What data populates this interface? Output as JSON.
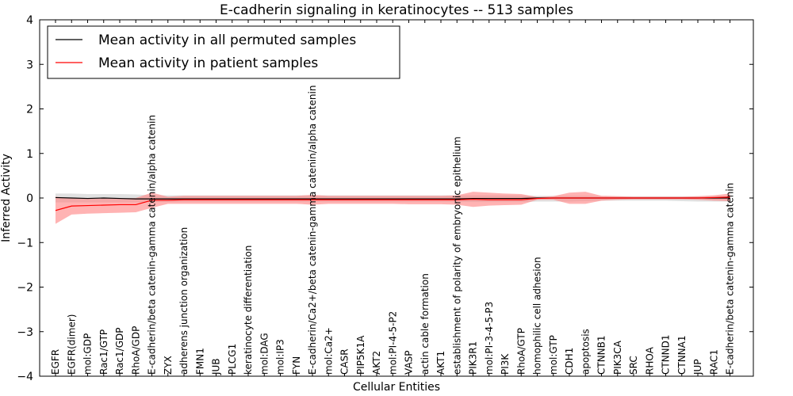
{
  "chart_data": {
    "type": "line",
    "title": "E-cadherin signaling in keratinocytes -- 513 samples",
    "xlabel": "Cellular Entities",
    "ylabel": "Inferred Activity",
    "ylim": [
      -4,
      4
    ],
    "yticks": [
      "4",
      "3",
      "2",
      "1",
      "0",
      "−1",
      "−2",
      "−3",
      "−4"
    ],
    "ytick_values": [
      4,
      3,
      2,
      1,
      0,
      -1,
      -2,
      -3,
      -4
    ],
    "legend_position": "top-left",
    "categories": [
      "EGFR",
      "EGFR(dimer)",
      "mol:GDP",
      "Rac1/GTP",
      "Rac1/GDP",
      "RhoA/GDP",
      "E-cadherin/beta catenin-gamma catenin/alpha catenin",
      "ZYX",
      "adherens junction organization",
      "FMN1",
      "JUB",
      "PLCG1",
      "keratinocyte differentiation",
      "mol:DAG",
      "mol:IP3",
      "FYN",
      "E-cadherin/Ca2+/beta catenin-gamma catenin/alpha catenin",
      "mol:Ca2+",
      "CASR",
      "PIP5K1A",
      "AKT2",
      "mol:PI-4-5-P2",
      "VASP",
      "actin cable formation",
      "AKT1",
      "establishment of polarity of embryonic epithelium",
      "PIK3R1",
      "mol:PI-3-4-5-P3",
      "PI3K",
      "RhoA/GTP",
      "homophilic cell adhesion",
      "mol:GTP",
      "CDH1",
      "apoptosis",
      "CTNNB1",
      "PIK3CA",
      "SRC",
      "RHOA",
      "CTNND1",
      "CTNNA1",
      "JUP",
      "RAC1",
      "E-cadherin/beta catenin-gamma catenin"
    ],
    "series": [
      {
        "name": "Mean activity in all permuted samples",
        "color": "#000000",
        "band_color": "#c8c8c8",
        "values": [
          0.01,
          0.0,
          -0.01,
          0.0,
          -0.01,
          -0.02,
          -0.02,
          -0.02,
          -0.02,
          -0.02,
          -0.02,
          -0.02,
          -0.02,
          -0.02,
          -0.02,
          -0.02,
          -0.02,
          -0.02,
          -0.02,
          -0.02,
          -0.02,
          -0.02,
          -0.02,
          -0.02,
          -0.02,
          -0.02,
          -0.01,
          -0.01,
          -0.01,
          -0.01,
          0.0,
          0.0,
          0.0,
          0.0,
          0.0,
          0.0,
          0.0,
          0.0,
          0.0,
          0.0,
          0.0,
          0.0,
          0.0
        ],
        "band_upper": [
          0.1,
          0.1,
          0.09,
          0.09,
          0.09,
          0.08,
          0.06,
          0.06,
          0.06,
          0.06,
          0.06,
          0.06,
          0.06,
          0.06,
          0.06,
          0.06,
          0.06,
          0.06,
          0.06,
          0.06,
          0.06,
          0.06,
          0.06,
          0.06,
          0.06,
          0.06,
          0.06,
          0.06,
          0.06,
          0.06,
          0.05,
          0.05,
          0.05,
          0.05,
          0.04,
          0.04,
          0.04,
          0.04,
          0.04,
          0.04,
          0.04,
          0.04,
          0.04
        ],
        "band_lower": [
          -0.1,
          -0.1,
          -0.1,
          -0.1,
          -0.1,
          -0.1,
          -0.09,
          -0.09,
          -0.09,
          -0.09,
          -0.09,
          -0.09,
          -0.09,
          -0.09,
          -0.09,
          -0.09,
          -0.09,
          -0.09,
          -0.09,
          -0.09,
          -0.09,
          -0.09,
          -0.09,
          -0.09,
          -0.09,
          -0.09,
          -0.09,
          -0.09,
          -0.09,
          -0.09,
          -0.08,
          -0.08,
          -0.08,
          -0.07,
          -0.06,
          -0.06,
          -0.06,
          -0.06,
          -0.06,
          -0.07,
          -0.08,
          -0.08,
          -0.08
        ]
      },
      {
        "name": "Mean activity in patient samples",
        "color": "#ff0000",
        "band_color": "#ff8080",
        "values": [
          -0.28,
          -0.18,
          -0.17,
          -0.16,
          -0.15,
          -0.15,
          -0.05,
          -0.05,
          -0.04,
          -0.04,
          -0.04,
          -0.04,
          -0.04,
          -0.04,
          -0.04,
          -0.04,
          -0.04,
          -0.04,
          -0.04,
          -0.04,
          -0.04,
          -0.04,
          -0.04,
          -0.04,
          -0.04,
          -0.04,
          -0.03,
          -0.04,
          -0.04,
          -0.04,
          -0.01,
          0.0,
          0.0,
          0.0,
          0.0,
          0.0,
          0.0,
          0.0,
          0.0,
          0.0,
          0.0,
          0.01,
          0.02
        ],
        "band_upper": [
          0.03,
          0.0,
          -0.01,
          -0.01,
          -0.01,
          0.0,
          0.12,
          0.03,
          0.05,
          0.05,
          0.05,
          0.05,
          0.05,
          0.05,
          0.05,
          0.05,
          0.07,
          0.05,
          0.05,
          0.05,
          0.05,
          0.05,
          0.05,
          0.05,
          0.05,
          0.06,
          0.14,
          0.12,
          0.1,
          0.09,
          0.02,
          0.04,
          0.12,
          0.14,
          0.05,
          0.04,
          0.03,
          0.03,
          0.03,
          0.03,
          0.04,
          0.06,
          0.1
        ],
        "band_lower": [
          -0.58,
          -0.37,
          -0.35,
          -0.34,
          -0.33,
          -0.32,
          -0.22,
          -0.13,
          -0.13,
          -0.13,
          -0.13,
          -0.13,
          -0.13,
          -0.13,
          -0.13,
          -0.13,
          -0.15,
          -0.13,
          -0.13,
          -0.13,
          -0.13,
          -0.13,
          -0.14,
          -0.14,
          -0.14,
          -0.15,
          -0.2,
          -0.17,
          -0.16,
          -0.15,
          -0.04,
          -0.04,
          -0.13,
          -0.13,
          -0.06,
          -0.04,
          -0.03,
          -0.03,
          -0.03,
          -0.03,
          -0.04,
          -0.06,
          -0.07
        ]
      }
    ]
  }
}
